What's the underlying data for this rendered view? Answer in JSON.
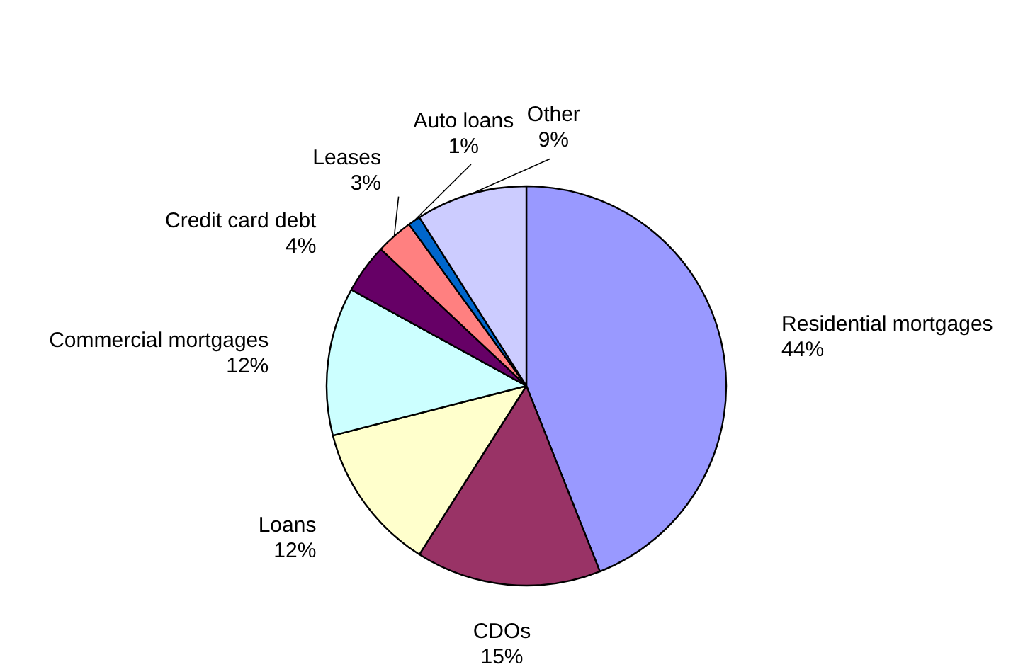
{
  "chart_data": {
    "type": "pie",
    "categories": [
      "Residential mortgages",
      "CDOs",
      "Loans",
      "Commercial mortgages",
      "Credit card debt",
      "Leases",
      "Auto loans",
      "Other"
    ],
    "values": [
      44,
      15,
      12,
      12,
      4,
      3,
      1,
      9
    ],
    "colors": [
      "#9999ff",
      "#993366",
      "#ffffcc",
      "#ccffff",
      "#660066",
      "#ff8080",
      "#0066cc",
      "#ccccff"
    ],
    "value_labels": [
      "44%",
      "15%",
      "12%",
      "12%",
      "4%",
      "3%",
      "1%",
      "9%"
    ]
  }
}
